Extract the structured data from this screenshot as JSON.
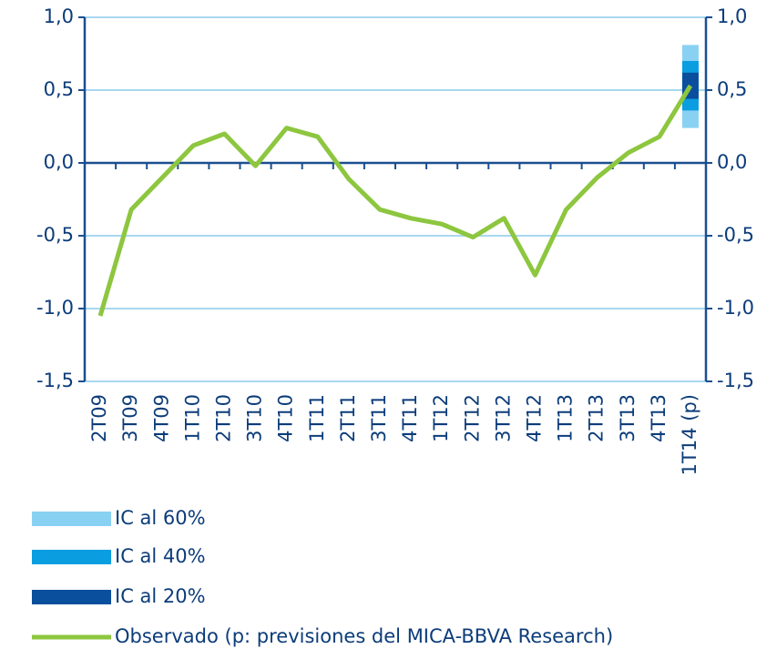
{
  "chart_data": {
    "type": "line",
    "categories": [
      "2T09",
      "3T09",
      "4T09",
      "1T10",
      "2T10",
      "3T10",
      "4T10",
      "1T11",
      "2T11",
      "3T11",
      "4T11",
      "1T12",
      "2T12",
      "3T12",
      "4T12",
      "1T13",
      "2T13",
      "3T13",
      "4T13",
      "1T14 (p)"
    ],
    "series": [
      {
        "name": "Observado (p: previsiones del MICA-BBVA Research)",
        "color": "#8dc63f",
        "values": [
          -1.05,
          -0.32,
          -0.1,
          0.12,
          0.2,
          -0.02,
          0.24,
          0.18,
          -0.11,
          -0.32,
          -0.38,
          -0.42,
          -0.51,
          -0.38,
          -0.77,
          -0.32,
          -0.1,
          0.07,
          0.18,
          0.53
        ]
      }
    ],
    "intervals": [
      {
        "name": "IC al 60%",
        "color": "#89d1f3",
        "low": 0.24,
        "high": 0.81
      },
      {
        "name": "IC al 40%",
        "color": "#0a9ee0",
        "low": 0.36,
        "high": 0.7
      },
      {
        "name": "IC al 20%",
        "color": "#0a4f9e",
        "low": 0.44,
        "high": 0.62
      }
    ],
    "ylim": [
      -1.5,
      1.0
    ],
    "yticks": [
      {
        "value": -1.5,
        "label": "-1,5"
      },
      {
        "value": -1.0,
        "label": "-1,0"
      },
      {
        "value": -0.5,
        "label": "-0,5"
      },
      {
        "value": 0,
        "label": "0,0"
      },
      {
        "value": 0.5,
        "label": "0,5"
      },
      {
        "value": 1.0,
        "label": "1,0"
      }
    ],
    "y2lim": [
      -1.5,
      1.0
    ],
    "y2ticks": [
      {
        "value": -1.5,
        "label": "-1,5"
      },
      {
        "value": -1.0,
        "label": "-1,0"
      },
      {
        "value": -0.5,
        "label": "-0,5"
      },
      {
        "value": 0,
        "label": "0,0"
      },
      {
        "value": 0.5,
        "label": "0,5"
      },
      {
        "value": 1.0,
        "label": "1,0"
      }
    ],
    "grid": true
  }
}
